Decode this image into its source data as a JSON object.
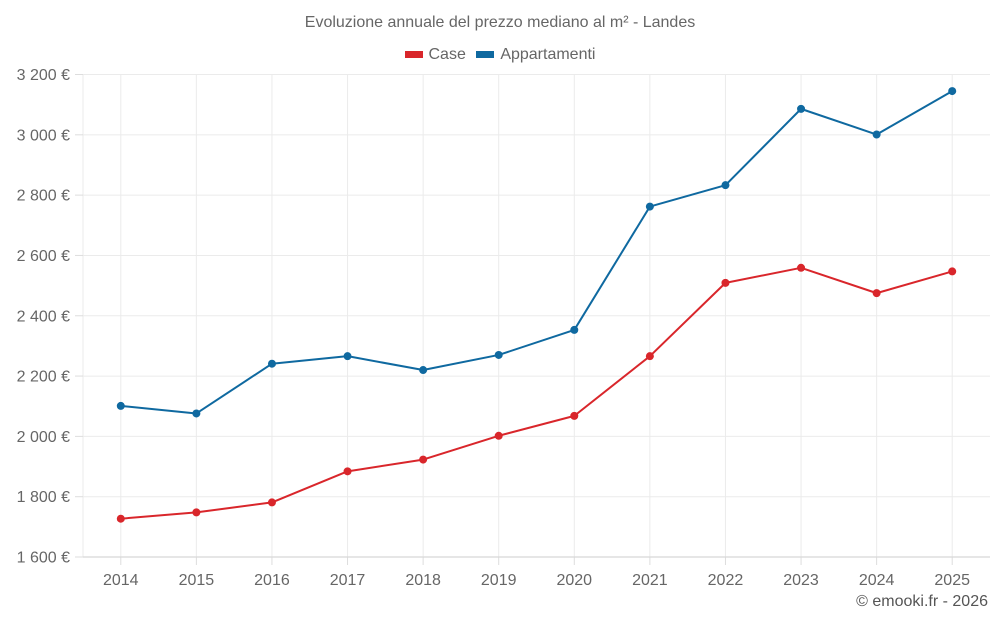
{
  "chart_data": {
    "type": "line",
    "title": "Evoluzione annuale del prezzo mediano al m² - Landes",
    "xlabel": "",
    "ylabel": "",
    "x": [
      "2014",
      "2015",
      "2016",
      "2017",
      "2018",
      "2019",
      "2020",
      "2021",
      "2022",
      "2023",
      "2024",
      "2025"
    ],
    "ylim": [
      1600,
      3200
    ],
    "yticks": [
      1600,
      1800,
      2000,
      2200,
      2400,
      2600,
      2800,
      3000,
      3200
    ],
    "ytick_labels": [
      "1 600 €",
      "1 800 €",
      "2 000 €",
      "2 200 €",
      "2 400 €",
      "2 600 €",
      "2 800 €",
      "3 000 €",
      "3 200 €"
    ],
    "grid": true,
    "legend_position": "top-center",
    "series": [
      {
        "name": "Case",
        "color": "#d9262b",
        "values": [
          1727,
          1748,
          1781,
          1884,
          1923,
          2002,
          2068,
          2266,
          2509,
          2559,
          2475,
          2547
        ]
      },
      {
        "name": "Appartamenti",
        "color": "#0f69a0",
        "values": [
          2101,
          2076,
          2241,
          2266,
          2220,
          2270,
          2353,
          2762,
          2833,
          3086,
          3001,
          3145
        ]
      }
    ]
  },
  "credit": "© emooki.fr - 2026"
}
